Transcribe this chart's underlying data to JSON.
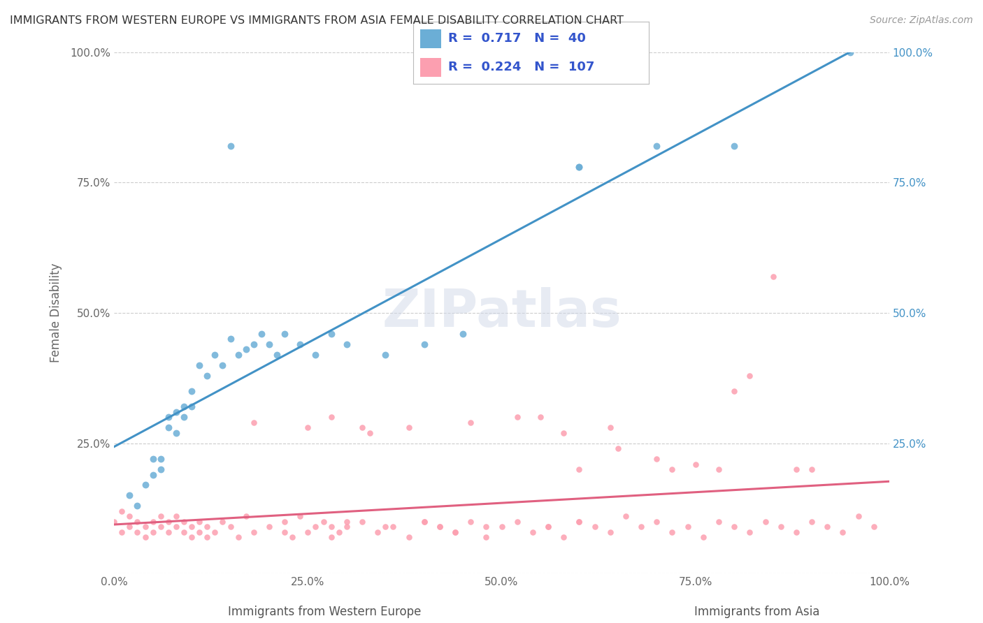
{
  "title": "IMMIGRANTS FROM WESTERN EUROPE VS IMMIGRANTS FROM ASIA FEMALE DISABILITY CORRELATION CHART",
  "source": "Source: ZipAtlas.com",
  "xlabel_left": "Immigrants from Western Europe",
  "xlabel_right": "Immigrants from Asia",
  "ylabel": "Female Disability",
  "xlim": [
    0.0,
    1.0
  ],
  "ylim": [
    0.0,
    1.0
  ],
  "xticks": [
    0.0,
    0.25,
    0.5,
    0.75,
    1.0
  ],
  "yticks": [
    0.0,
    0.25,
    0.5,
    0.75,
    1.0
  ],
  "xtick_labels": [
    "0.0%",
    "25.0%",
    "50.0%",
    "75.0%",
    "100.0%"
  ],
  "ytick_labels": [
    "",
    "25.0%",
    "50.0%",
    "75.0%",
    "100.0%"
  ],
  "blue_color": "#6baed6",
  "blue_line_color": "#4292c6",
  "pink_color": "#fc9fb0",
  "pink_line_color": "#e06080",
  "legend_text_color": "#3355cc",
  "R_blue": 0.717,
  "N_blue": 40,
  "R_pink": 0.224,
  "N_pink": 107,
  "watermark": "ZIPatlas",
  "blue_scatter_x": [
    0.02,
    0.03,
    0.04,
    0.05,
    0.05,
    0.06,
    0.06,
    0.07,
    0.07,
    0.08,
    0.08,
    0.09,
    0.09,
    0.1,
    0.1,
    0.11,
    0.12,
    0.13,
    0.14,
    0.15,
    0.16,
    0.17,
    0.18,
    0.19,
    0.2,
    0.21,
    0.22,
    0.24,
    0.26,
    0.28,
    0.3,
    0.35,
    0.4,
    0.45,
    0.6,
    0.7,
    0.8,
    0.95,
    0.15,
    0.6
  ],
  "blue_scatter_y": [
    0.15,
    0.13,
    0.17,
    0.19,
    0.22,
    0.2,
    0.22,
    0.28,
    0.3,
    0.27,
    0.31,
    0.32,
    0.3,
    0.35,
    0.32,
    0.4,
    0.38,
    0.42,
    0.4,
    0.45,
    0.42,
    0.43,
    0.44,
    0.46,
    0.44,
    0.42,
    0.46,
    0.44,
    0.42,
    0.46,
    0.44,
    0.42,
    0.44,
    0.46,
    0.78,
    0.82,
    0.82,
    1.0,
    0.82,
    0.78
  ],
  "pink_scatter_x": [
    0.0,
    0.01,
    0.01,
    0.02,
    0.02,
    0.03,
    0.03,
    0.04,
    0.04,
    0.05,
    0.05,
    0.06,
    0.06,
    0.07,
    0.07,
    0.08,
    0.08,
    0.09,
    0.09,
    0.1,
    0.1,
    0.11,
    0.11,
    0.12,
    0.12,
    0.13,
    0.14,
    0.15,
    0.16,
    0.17,
    0.18,
    0.2,
    0.22,
    0.23,
    0.24,
    0.25,
    0.26,
    0.27,
    0.28,
    0.29,
    0.3,
    0.32,
    0.34,
    0.36,
    0.38,
    0.4,
    0.42,
    0.44,
    0.46,
    0.48,
    0.5,
    0.52,
    0.54,
    0.56,
    0.58,
    0.6,
    0.62,
    0.64,
    0.66,
    0.68,
    0.7,
    0.72,
    0.74,
    0.76,
    0.78,
    0.8,
    0.82,
    0.84,
    0.86,
    0.88,
    0.9,
    0.92,
    0.94,
    0.96,
    0.98,
    0.55,
    0.58,
    0.6,
    0.65,
    0.7,
    0.72,
    0.75,
    0.78,
    0.8,
    0.82,
    0.85,
    0.88,
    0.9,
    0.18,
    0.22,
    0.25,
    0.28,
    0.3,
    0.32,
    0.35,
    0.38,
    0.4,
    0.42,
    0.44,
    0.46,
    0.28,
    0.33,
    0.48,
    0.52,
    0.56,
    0.6,
    0.64
  ],
  "pink_scatter_y": [
    0.1,
    0.08,
    0.12,
    0.09,
    0.11,
    0.1,
    0.08,
    0.09,
    0.07,
    0.1,
    0.08,
    0.09,
    0.11,
    0.1,
    0.08,
    0.09,
    0.11,
    0.08,
    0.1,
    0.09,
    0.07,
    0.08,
    0.1,
    0.07,
    0.09,
    0.08,
    0.1,
    0.09,
    0.07,
    0.11,
    0.08,
    0.09,
    0.1,
    0.07,
    0.11,
    0.08,
    0.09,
    0.1,
    0.07,
    0.08,
    0.09,
    0.1,
    0.08,
    0.09,
    0.07,
    0.1,
    0.09,
    0.08,
    0.1,
    0.07,
    0.09,
    0.1,
    0.08,
    0.09,
    0.07,
    0.1,
    0.09,
    0.08,
    0.11,
    0.09,
    0.1,
    0.08,
    0.09,
    0.07,
    0.1,
    0.09,
    0.08,
    0.1,
    0.09,
    0.08,
    0.1,
    0.09,
    0.08,
    0.11,
    0.09,
    0.3,
    0.27,
    0.2,
    0.24,
    0.22,
    0.2,
    0.21,
    0.2,
    0.35,
    0.38,
    0.57,
    0.2,
    0.2,
    0.29,
    0.08,
    0.28,
    0.09,
    0.1,
    0.28,
    0.09,
    0.28,
    0.1,
    0.09,
    0.08,
    0.29,
    0.3,
    0.27,
    0.09,
    0.3,
    0.09,
    0.1,
    0.28
  ]
}
